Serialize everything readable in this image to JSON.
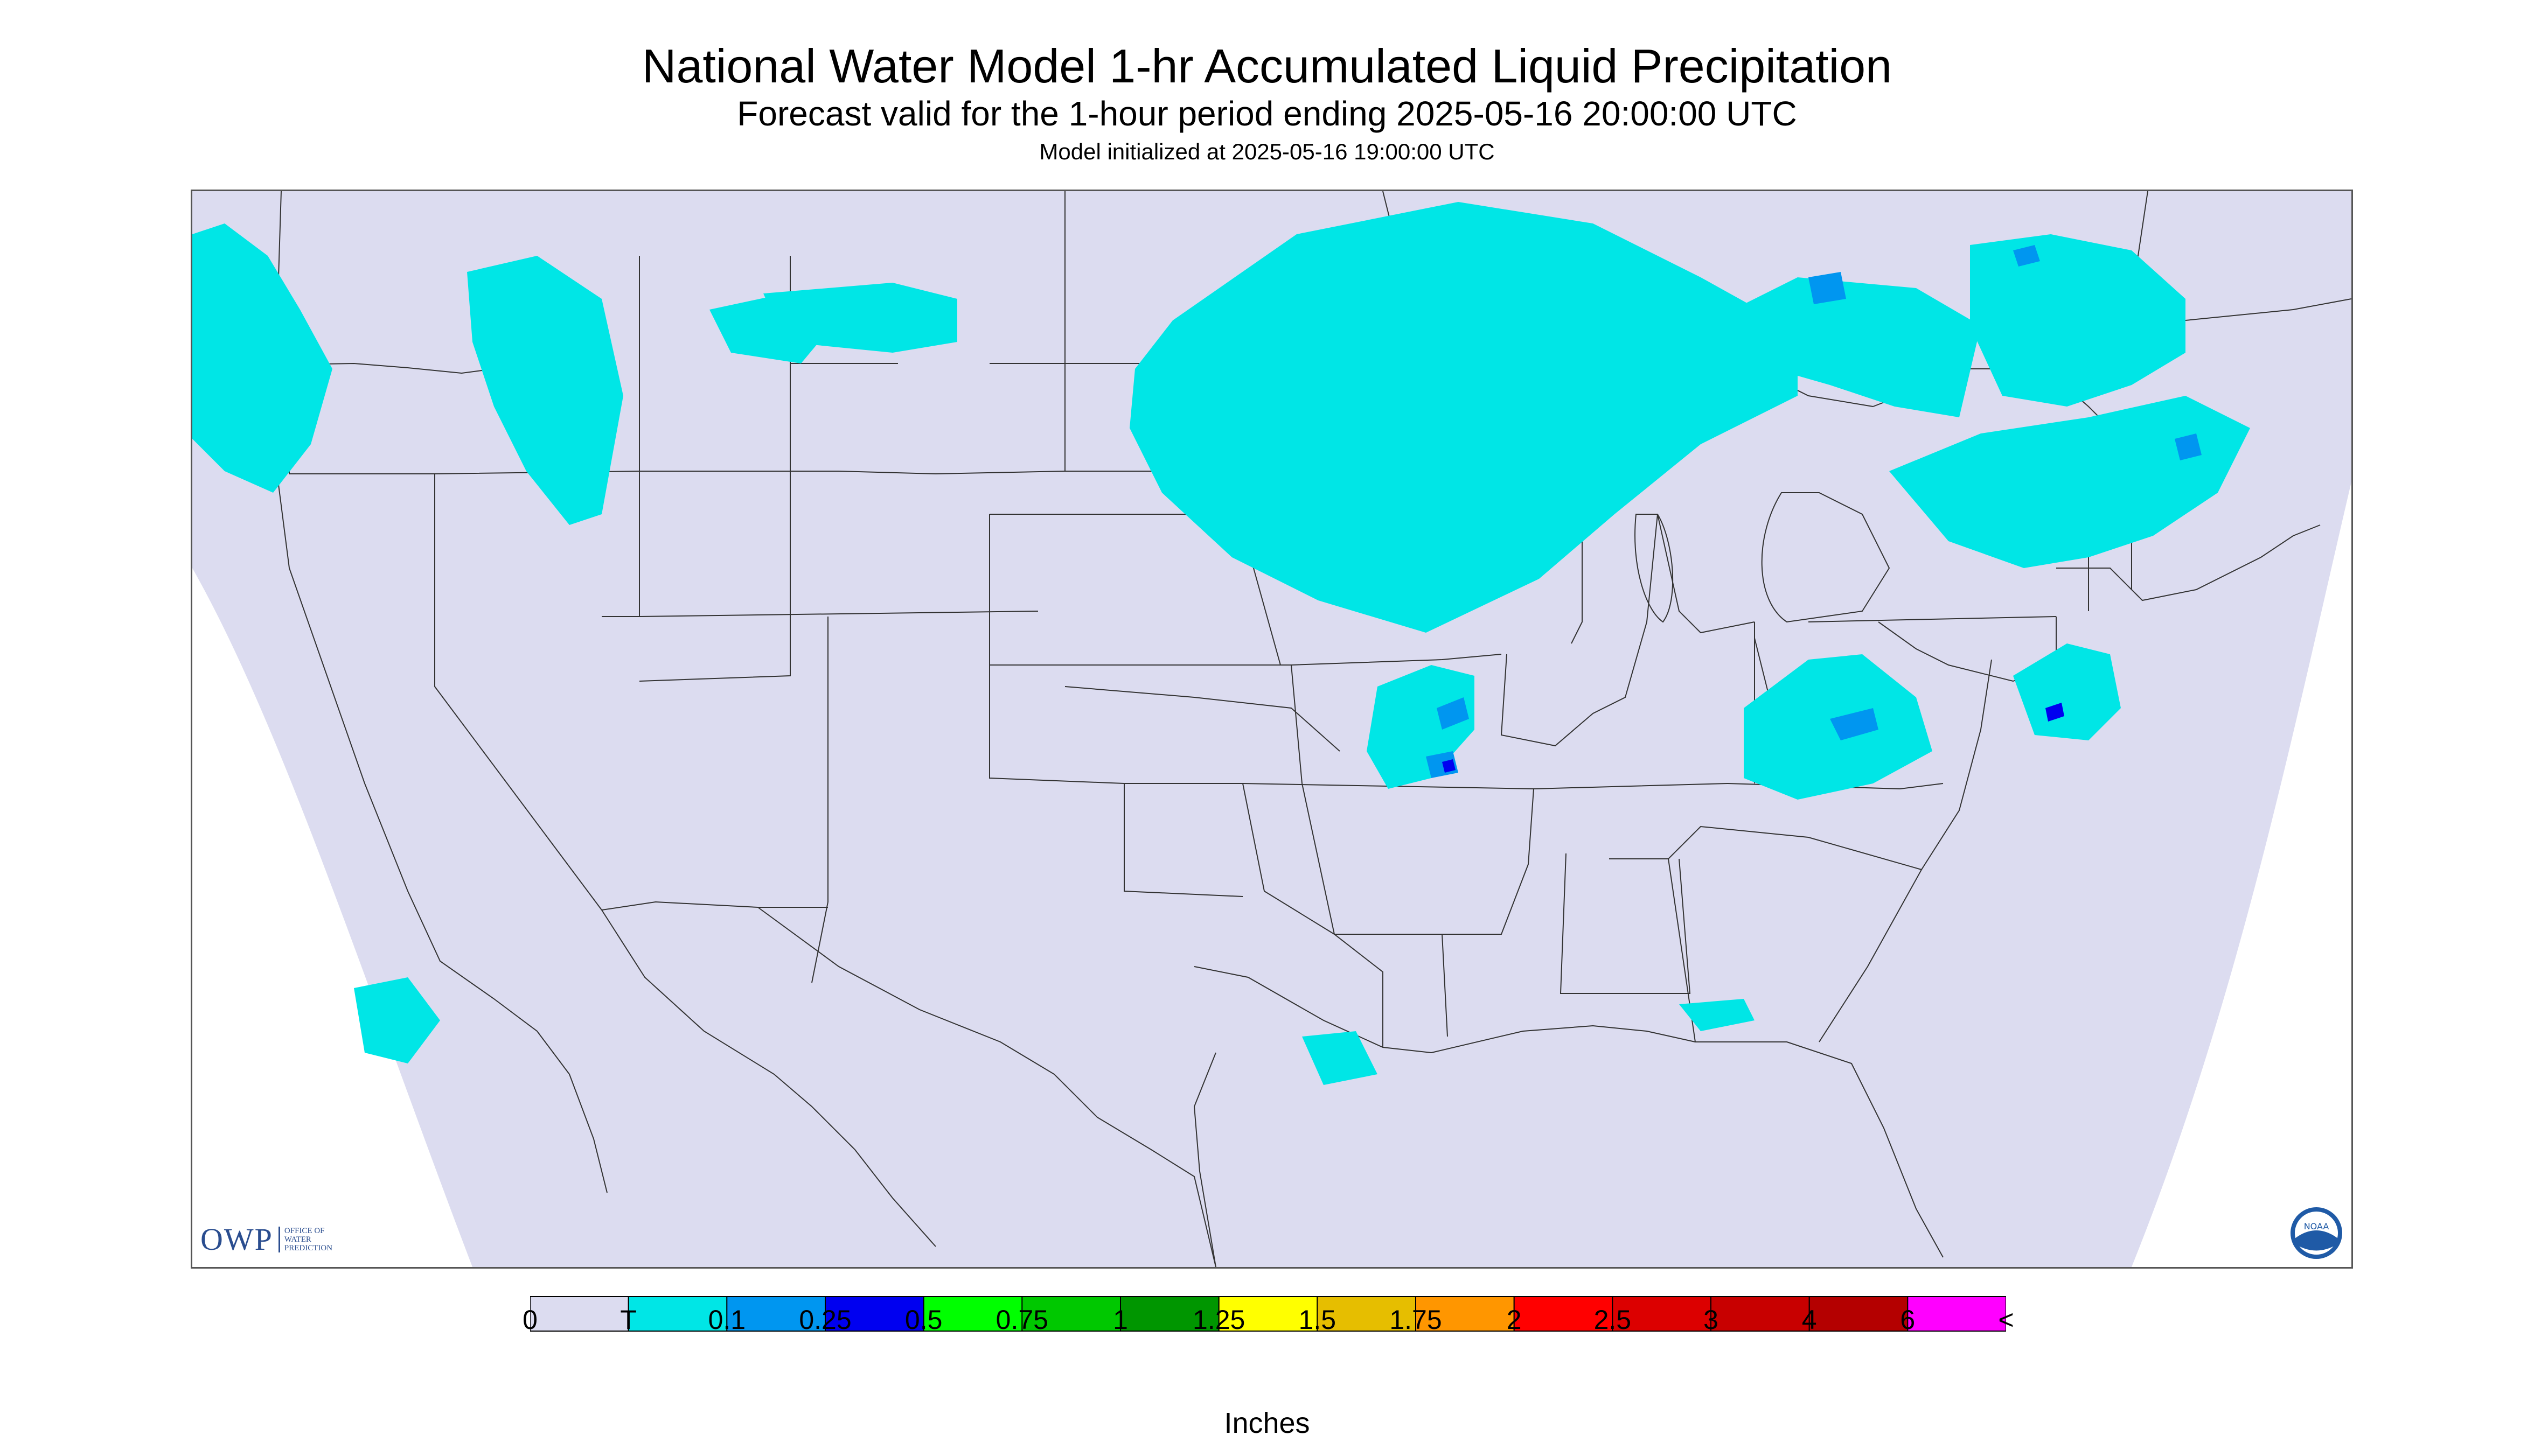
{
  "header": {
    "title": "National Water Model 1-hr Accumulated Liquid Precipitation",
    "subtitle": "Forecast valid for the 1-hour period ending 2025-05-16 20:00:00 UTC",
    "init": "Model initialized at 2025-05-16 19:00:00 UTC"
  },
  "legend": {
    "unit_label": "Inches",
    "ticks": [
      "0",
      "T",
      "0.1",
      "0.25",
      "0.5",
      "0.75",
      "1",
      "1.25",
      "1.5",
      "1.75",
      "2",
      "2.5",
      "3",
      "4",
      "6",
      "<"
    ],
    "colors": [
      "#dcdcf0",
      "#00e6e6",
      "#0096f0",
      "#0000f0",
      "#00ff00",
      "#00c800",
      "#009600",
      "#ffff00",
      "#e6be00",
      "#ff9600",
      "#ff0000",
      "#dc0000",
      "#c80000",
      "#b40000",
      "#ff00ff",
      "#9650c8"
    ]
  },
  "map": {
    "domain_fill": "#dcdcf0",
    "precip_light": "#00e6e6",
    "precip_moderate": "#0096f0",
    "precip_heavy": "#0000f0"
  },
  "logos": {
    "owp_big": "OWP",
    "owp_small": [
      "OFFICE OF",
      "WATER",
      "PREDICTION"
    ],
    "noaa_text": "NOAA"
  }
}
